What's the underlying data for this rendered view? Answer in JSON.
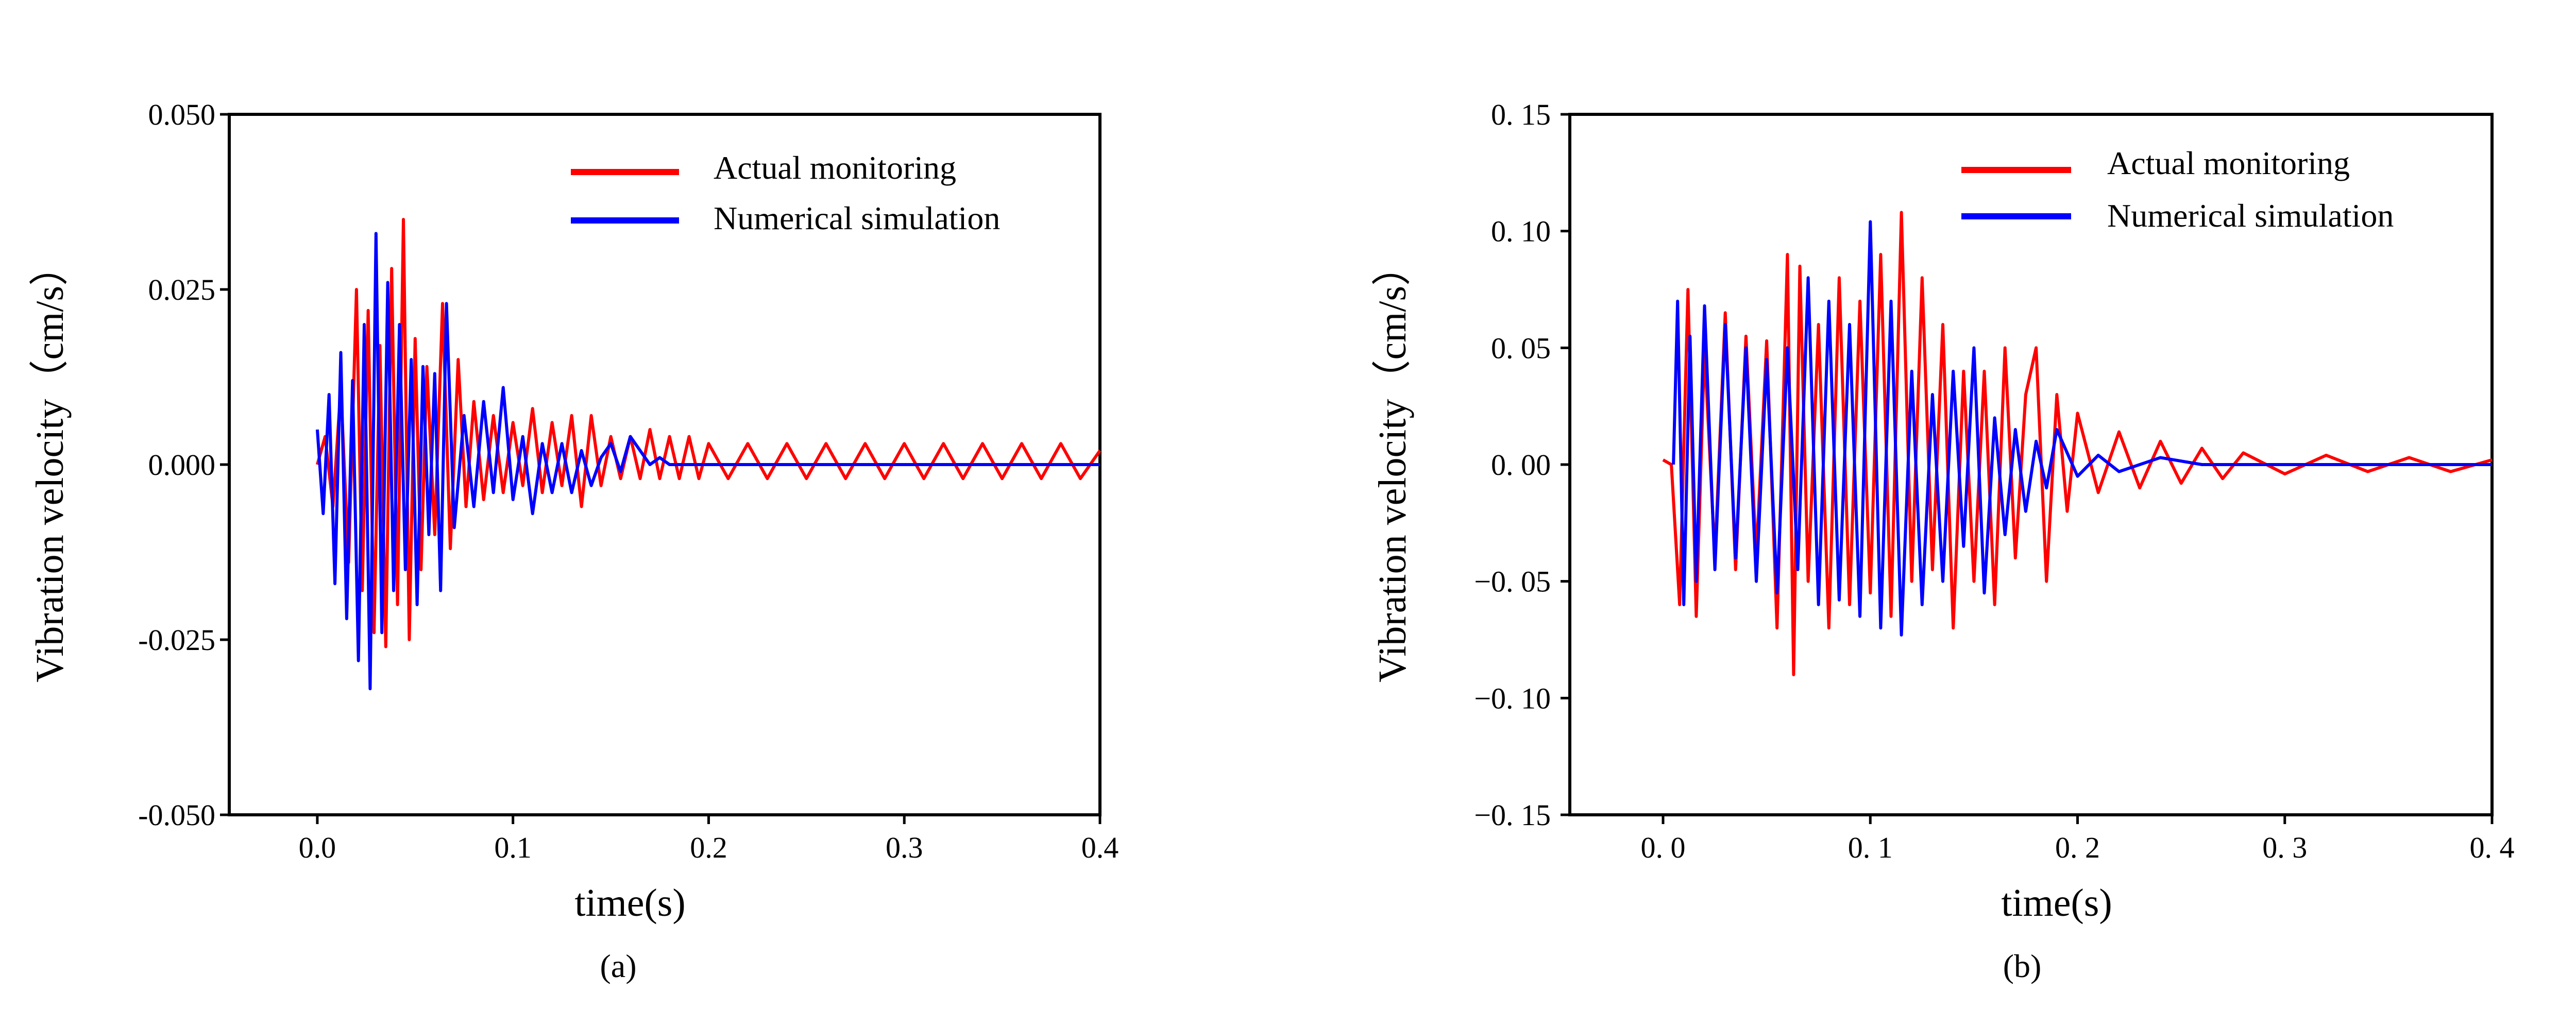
{
  "figure": {
    "panels": [
      "(a)",
      "(b)"
    ]
  },
  "chart_data": [
    {
      "type": "line",
      "panel_label": "(a)",
      "title": "",
      "xlabel": "time(s)",
      "ylabel": "Vibration velocity（cm/s）",
      "xlim": [
        -0.045,
        0.4
      ],
      "ylim": [
        -0.05,
        0.05
      ],
      "xticks": [
        0.0,
        0.1,
        0.2,
        0.3,
        0.4
      ],
      "xtick_labels": [
        "0.0",
        "0.1",
        "0.2",
        "0.3",
        "0.4"
      ],
      "yticks": [
        -0.05,
        -0.025,
        0.0,
        0.025,
        0.05
      ],
      "ytick_labels": [
        "-0.050",
        "-0.025",
        "0.000",
        "0.025",
        "0.050"
      ],
      "grid": false,
      "legend": "top-right",
      "series": [
        {
          "name": "Actual monitoring",
          "color": "#ff0000",
          "x": [
            0.0,
            0.004,
            0.008,
            0.012,
            0.016,
            0.02,
            0.023,
            0.026,
            0.029,
            0.032,
            0.035,
            0.038,
            0.041,
            0.044,
            0.047,
            0.05,
            0.053,
            0.056,
            0.06,
            0.064,
            0.068,
            0.072,
            0.076,
            0.08,
            0.085,
            0.09,
            0.095,
            0.1,
            0.105,
            0.11,
            0.115,
            0.12,
            0.125,
            0.13,
            0.135,
            0.14,
            0.145,
            0.15,
            0.155,
            0.16,
            0.165,
            0.17,
            0.175,
            0.18,
            0.185,
            0.19,
            0.195,
            0.2,
            0.21,
            0.22,
            0.23,
            0.24,
            0.25,
            0.26,
            0.27,
            0.28,
            0.29,
            0.3,
            0.31,
            0.32,
            0.33,
            0.34,
            0.35,
            0.36,
            0.37,
            0.38,
            0.39,
            0.4
          ],
          "y": [
            0.0,
            0.004,
            -0.006,
            0.011,
            -0.014,
            0.025,
            -0.018,
            0.022,
            -0.024,
            0.017,
            -0.026,
            0.028,
            -0.02,
            0.035,
            -0.025,
            0.018,
            -0.015,
            0.014,
            -0.01,
            0.023,
            -0.012,
            0.015,
            -0.006,
            0.009,
            -0.005,
            0.007,
            -0.004,
            0.006,
            -0.003,
            0.008,
            -0.004,
            0.006,
            -0.003,
            0.007,
            -0.006,
            0.007,
            -0.003,
            0.004,
            -0.002,
            0.004,
            -0.002,
            0.005,
            -0.002,
            0.004,
            -0.002,
            0.004,
            -0.002,
            0.003,
            -0.002,
            0.003,
            -0.002,
            0.003,
            -0.002,
            0.003,
            -0.002,
            0.003,
            -0.002,
            0.003,
            -0.002,
            0.003,
            -0.002,
            0.003,
            -0.002,
            0.003,
            -0.002,
            0.003,
            -0.002,
            0.002
          ]
        },
        {
          "name": "Numerical simulation",
          "color": "#0000ff",
          "x": [
            0.0,
            0.003,
            0.006,
            0.009,
            0.012,
            0.015,
            0.018,
            0.021,
            0.024,
            0.027,
            0.03,
            0.033,
            0.036,
            0.039,
            0.042,
            0.045,
            0.048,
            0.051,
            0.054,
            0.057,
            0.06,
            0.063,
            0.066,
            0.07,
            0.075,
            0.08,
            0.085,
            0.09,
            0.095,
            0.1,
            0.105,
            0.11,
            0.115,
            0.12,
            0.125,
            0.13,
            0.135,
            0.14,
            0.145,
            0.15,
            0.155,
            0.16,
            0.165,
            0.17,
            0.175,
            0.18,
            0.2,
            0.25,
            0.3,
            0.35,
            0.4
          ],
          "y": [
            0.005,
            -0.007,
            0.01,
            -0.017,
            0.016,
            -0.022,
            0.012,
            -0.028,
            0.02,
            -0.032,
            0.033,
            -0.024,
            0.026,
            -0.018,
            0.02,
            -0.015,
            0.015,
            -0.02,
            0.014,
            -0.01,
            0.013,
            -0.018,
            0.023,
            -0.009,
            0.007,
            -0.006,
            0.009,
            -0.004,
            0.011,
            -0.005,
            0.004,
            -0.007,
            0.003,
            -0.004,
            0.003,
            -0.004,
            0.002,
            -0.003,
            0.001,
            0.003,
            -0.001,
            0.004,
            0.002,
            0.0,
            0.001,
            0.0,
            0.0,
            0.0,
            0.0,
            0.0,
            0.0
          ]
        }
      ]
    },
    {
      "type": "line",
      "panel_label": "(b)",
      "title": "",
      "xlabel": "time(s)",
      "ylabel": "Vibration velocity（cm/s）",
      "xlim": [
        -0.045,
        0.4
      ],
      "ylim": [
        -0.15,
        0.15
      ],
      "xticks": [
        0.0,
        0.1,
        0.2,
        0.3,
        0.4
      ],
      "xtick_labels": [
        "0. 0",
        "0. 1",
        "0. 2",
        "0. 3",
        "0. 4"
      ],
      "yticks": [
        -0.15,
        -0.1,
        -0.05,
        0.0,
        0.05,
        0.1,
        0.15
      ],
      "ytick_labels": [
        "−0. 15",
        "−0. 10",
        "−0. 05",
        "0. 00",
        "0. 05",
        "0. 10",
        "0. 15"
      ],
      "grid": false,
      "legend": "top-right",
      "series": [
        {
          "name": "Actual monitoring",
          "color": "#ff0000",
          "x": [
            0.0,
            0.004,
            0.008,
            0.012,
            0.016,
            0.02,
            0.025,
            0.03,
            0.035,
            0.04,
            0.045,
            0.05,
            0.055,
            0.06,
            0.063,
            0.066,
            0.07,
            0.075,
            0.08,
            0.085,
            0.09,
            0.095,
            0.1,
            0.105,
            0.11,
            0.115,
            0.12,
            0.125,
            0.13,
            0.135,
            0.14,
            0.145,
            0.15,
            0.155,
            0.16,
            0.165,
            0.17,
            0.175,
            0.18,
            0.185,
            0.19,
            0.195,
            0.2,
            0.21,
            0.22,
            0.23,
            0.24,
            0.25,
            0.26,
            0.27,
            0.28,
            0.3,
            0.32,
            0.34,
            0.36,
            0.38,
            0.4
          ],
          "y": [
            0.002,
            0.0,
            -0.06,
            0.075,
            -0.065,
            0.05,
            -0.04,
            0.065,
            -0.045,
            0.055,
            -0.04,
            0.053,
            -0.07,
            0.09,
            -0.09,
            0.085,
            -0.05,
            0.06,
            -0.07,
            0.08,
            -0.06,
            0.07,
            -0.055,
            0.09,
            -0.065,
            0.108,
            -0.05,
            0.08,
            -0.045,
            0.06,
            -0.07,
            0.04,
            -0.05,
            0.04,
            -0.06,
            0.05,
            -0.04,
            0.03,
            0.05,
            -0.05,
            0.03,
            -0.02,
            0.022,
            -0.012,
            0.014,
            -0.01,
            0.01,
            -0.008,
            0.007,
            -0.006,
            0.005,
            -0.004,
            0.004,
            -0.003,
            0.003,
            -0.003,
            0.002
          ]
        },
        {
          "name": "Numerical simulation",
          "color": "#0000ff",
          "x": [
            0.005,
            0.007,
            0.01,
            0.013,
            0.016,
            0.02,
            0.025,
            0.03,
            0.035,
            0.04,
            0.045,
            0.05,
            0.055,
            0.06,
            0.065,
            0.07,
            0.075,
            0.08,
            0.085,
            0.09,
            0.095,
            0.1,
            0.105,
            0.11,
            0.115,
            0.12,
            0.125,
            0.13,
            0.135,
            0.14,
            0.145,
            0.15,
            0.155,
            0.16,
            0.165,
            0.17,
            0.175,
            0.18,
            0.185,
            0.19,
            0.2,
            0.21,
            0.22,
            0.24,
            0.26,
            0.3,
            0.35,
            0.4
          ],
          "y": [
            0.0,
            0.07,
            -0.06,
            0.055,
            -0.05,
            0.068,
            -0.045,
            0.06,
            -0.04,
            0.05,
            -0.05,
            0.045,
            -0.055,
            0.05,
            -0.045,
            0.08,
            -0.06,
            0.07,
            -0.058,
            0.06,
            -0.065,
            0.104,
            -0.07,
            0.07,
            -0.073,
            0.04,
            -0.06,
            0.03,
            -0.05,
            0.04,
            -0.035,
            0.05,
            -0.055,
            0.02,
            -0.03,
            0.015,
            -0.02,
            0.01,
            -0.01,
            0.015,
            -0.005,
            0.004,
            -0.003,
            0.003,
            0.0,
            0.0,
            0.0,
            0.0
          ]
        }
      ]
    }
  ]
}
